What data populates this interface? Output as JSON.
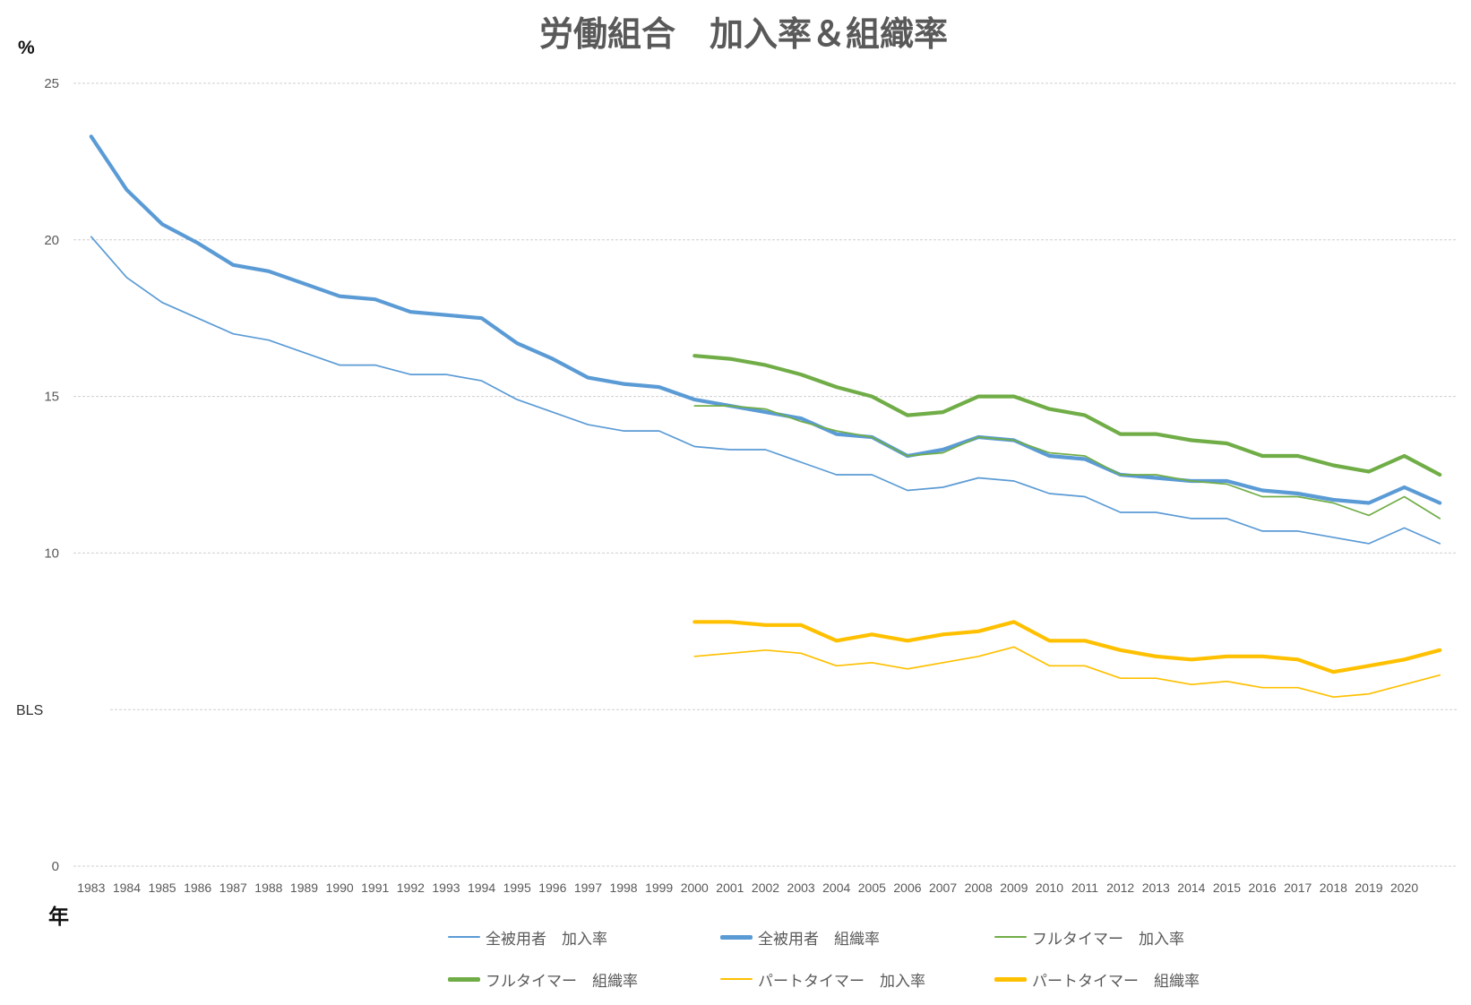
{
  "chart_data": {
    "type": "line",
    "title": "労働組合　加入率＆組織率",
    "xlabel": "年",
    "ylabel": "%",
    "ylim": [
      0,
      25
    ],
    "yticks": [
      0,
      10,
      15,
      20,
      25
    ],
    "ygrid": [
      0,
      5,
      10,
      15,
      20,
      25
    ],
    "grid": true,
    "legend": "bottom",
    "annotations": [
      {
        "text": "BLS",
        "y": 5
      }
    ],
    "categories": [
      "1983",
      "1984",
      "1985",
      "1986",
      "1987",
      "1988",
      "1989",
      "1990",
      "1991",
      "1992",
      "1993",
      "1994",
      "1995",
      "1996",
      "1997",
      "1998",
      "1999",
      "2000",
      "2001",
      "2002",
      "2003",
      "2004",
      "2005",
      "2006",
      "2007",
      "2008",
      "2009",
      "2010",
      "2011",
      "2012",
      "2013",
      "2014",
      "2015",
      "2016",
      "2017",
      "2018",
      "2019",
      "2020",
      ""
    ],
    "series": [
      {
        "name": "全被用者　加入率",
        "color": "#5B9BD5",
        "values": [
          20.1,
          18.8,
          18.0,
          17.5,
          17.0,
          16.8,
          16.4,
          16.0,
          16.0,
          15.7,
          15.7,
          15.5,
          14.9,
          14.5,
          14.1,
          13.9,
          13.9,
          13.4,
          13.3,
          13.3,
          12.9,
          12.5,
          12.5,
          12.0,
          12.1,
          12.4,
          12.3,
          11.9,
          11.8,
          11.3,
          11.3,
          11.1,
          11.1,
          10.7,
          10.7,
          10.5,
          10.3,
          10.8,
          10.3
        ]
      },
      {
        "name": "全被用者　組織率",
        "color": "#5B9BD5",
        "values": [
          23.3,
          21.6,
          20.5,
          19.9,
          19.2,
          19.0,
          18.6,
          18.2,
          18.1,
          17.7,
          17.6,
          17.5,
          16.7,
          16.2,
          15.6,
          15.4,
          15.3,
          14.9,
          14.7,
          14.5,
          14.3,
          13.8,
          13.7,
          13.1,
          13.3,
          13.7,
          13.6,
          13.1,
          13.0,
          12.5,
          12.4,
          12.3,
          12.3,
          12.0,
          11.9,
          11.7,
          11.6,
          12.1,
          11.6
        ]
      },
      {
        "name": "フルタイマー　加入率",
        "color": "#70AD47",
        "values": [
          null,
          null,
          null,
          null,
          null,
          null,
          null,
          null,
          null,
          null,
          null,
          null,
          null,
          null,
          null,
          null,
          null,
          14.7,
          14.7,
          14.6,
          14.2,
          13.9,
          13.7,
          13.1,
          13.2,
          13.7,
          13.6,
          13.2,
          13.1,
          12.5,
          12.5,
          12.3,
          12.2,
          11.8,
          11.8,
          11.6,
          11.2,
          11.8,
          11.1
        ]
      },
      {
        "name": "フルタイマー　組織率",
        "color": "#70AD47",
        "values": [
          null,
          null,
          null,
          null,
          null,
          null,
          null,
          null,
          null,
          null,
          null,
          null,
          null,
          null,
          null,
          null,
          null,
          16.3,
          16.2,
          16.0,
          15.7,
          15.3,
          15.0,
          14.4,
          14.5,
          15.0,
          15.0,
          14.6,
          14.4,
          13.8,
          13.8,
          13.6,
          13.5,
          13.1,
          13.1,
          12.8,
          12.6,
          13.1,
          12.5
        ]
      },
      {
        "name": "パートタイマー　加入率",
        "color": "#FFC000",
        "values": [
          null,
          null,
          null,
          null,
          null,
          null,
          null,
          null,
          null,
          null,
          null,
          null,
          null,
          null,
          null,
          null,
          null,
          6.7,
          6.8,
          6.9,
          6.8,
          6.4,
          6.5,
          6.3,
          6.5,
          6.7,
          7.0,
          6.4,
          6.4,
          6.0,
          6.0,
          5.8,
          5.9,
          5.7,
          5.7,
          5.4,
          5.5,
          5.8,
          6.1
        ]
      },
      {
        "name": "パートタイマー　組織率",
        "color": "#FFC000",
        "values": [
          null,
          null,
          null,
          null,
          null,
          null,
          null,
          null,
          null,
          null,
          null,
          null,
          null,
          null,
          null,
          null,
          null,
          7.8,
          7.8,
          7.7,
          7.7,
          7.2,
          7.4,
          7.2,
          7.4,
          7.5,
          7.8,
          7.2,
          7.2,
          6.9,
          6.7,
          6.6,
          6.7,
          6.7,
          6.6,
          6.2,
          6.4,
          6.6,
          6.9
        ]
      }
    ]
  }
}
